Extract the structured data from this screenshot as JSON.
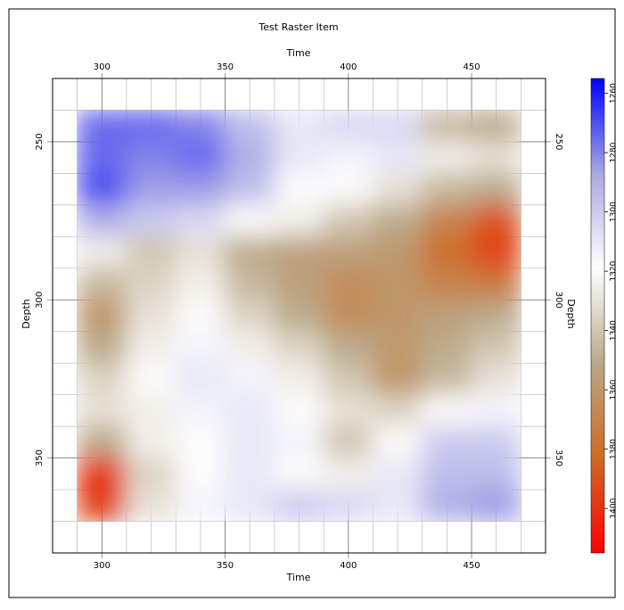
{
  "chart_data": {
    "type": "raster",
    "title": "Test Raster Item",
    "xlabel": "Time",
    "ylabel": "Depth",
    "xlim": [
      280,
      480
    ],
    "ylim": [
      230,
      380
    ],
    "y_inverted": true,
    "xticks": [
      300,
      350,
      400,
      450
    ],
    "yticks": [
      250,
      300,
      350
    ],
    "xminorticks": [
      290,
      300,
      310,
      320,
      330,
      340,
      350,
      360,
      370,
      380,
      390,
      400,
      410,
      420,
      430,
      440,
      450,
      460,
      470
    ],
    "yminorticks": [
      240,
      250,
      260,
      270,
      280,
      290,
      300,
      310,
      320,
      330,
      340,
      350,
      360,
      370
    ],
    "x": [
      300,
      320,
      340,
      360,
      380,
      400,
      420,
      440,
      460
    ],
    "x_cell": 20,
    "y": [
      245,
      255,
      265,
      275,
      285,
      295,
      305,
      315,
      325,
      335,
      345,
      355,
      365
    ],
    "y_cell": 10,
    "values": [
      [
        1395,
        1395,
        1390,
        1375,
        1360,
        1365,
        1365,
        1325,
        1320
      ],
      [
        1395,
        1390,
        1395,
        1380,
        1360,
        1355,
        1360,
        1345,
        1340
      ],
      [
        1400,
        1385,
        1385,
        1375,
        1350,
        1350,
        1340,
        1325,
        1320
      ],
      [
        1380,
        1370,
        1365,
        1350,
        1345,
        1330,
        1320,
        1300,
        1280
      ],
      [
        1345,
        1330,
        1340,
        1320,
        1315,
        1315,
        1310,
        1290,
        1275
      ],
      [
        1325,
        1335,
        1345,
        1325,
        1315,
        1305,
        1310,
        1300,
        1295
      ],
      [
        1310,
        1340,
        1350,
        1335,
        1320,
        1305,
        1310,
        1315,
        1320
      ],
      [
        1320,
        1345,
        1355,
        1345,
        1335,
        1320,
        1310,
        1320,
        1330
      ],
      [
        1335,
        1350,
        1360,
        1355,
        1345,
        1330,
        1310,
        1325,
        1340
      ],
      [
        1340,
        1345,
        1355,
        1360,
        1350,
        1340,
        1335,
        1350,
        1355
      ],
      [
        1320,
        1345,
        1350,
        1360,
        1355,
        1330,
        1350,
        1370,
        1370
      ],
      [
        1270,
        1335,
        1350,
        1360,
        1350,
        1345,
        1360,
        1375,
        1375
      ],
      [
        1275,
        1340,
        1355,
        1360,
        1370,
        1365,
        1360,
        1380,
        1385
      ]
    ],
    "clim": [
      1255,
      1415
    ],
    "cticks": [
      1260,
      1280,
      1300,
      1320,
      1340,
      1360,
      1380,
      1400
    ],
    "colormap": [
      "#ff0000",
      "#cf6a22",
      "#b9a888",
      "#ffffff",
      "#a8a8e4",
      "#0000ff"
    ],
    "grid": true
  }
}
